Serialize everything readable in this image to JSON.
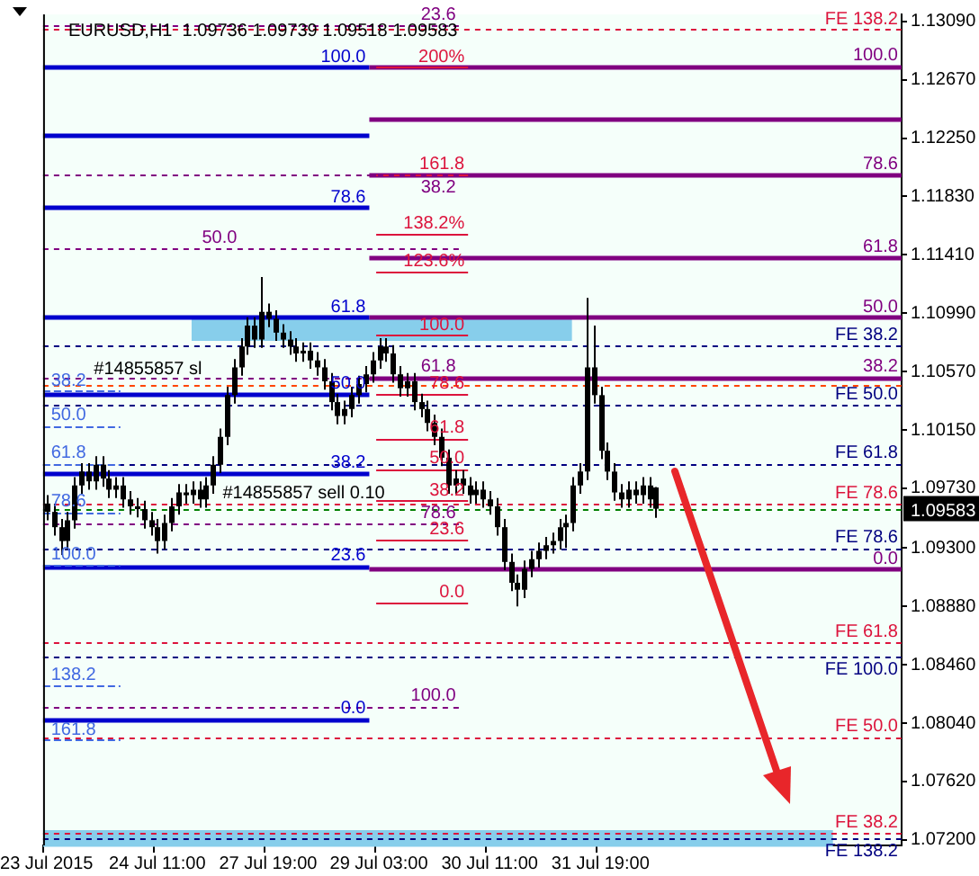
{
  "chart_data": {
    "type": "candlestick",
    "title": "EURUSD,H1  1.09736 1.09739 1.09518 1.09583",
    "color": "#000000",
    "categories": [
      "23 Jul 2015",
      null,
      null,
      null,
      null,
      null,
      null,
      null,
      null,
      null,
      null,
      null,
      null,
      null,
      null,
      null,
      "24 Jul 11:00",
      null,
      null,
      null,
      null,
      null,
      null,
      null,
      null,
      null,
      null,
      null,
      null,
      null,
      null,
      null,
      "27 Jul 19:00",
      null,
      null,
      null,
      null,
      null,
      null,
      null,
      null,
      null,
      null,
      null,
      null,
      null,
      null,
      null,
      "29 Jul 03:00",
      null,
      null,
      null,
      null,
      null,
      null,
      null,
      null,
      null,
      null,
      null,
      null,
      null,
      null,
      null,
      "30 Jul 11:00",
      null,
      null,
      null,
      null,
      null,
      null,
      null,
      null,
      null,
      null,
      null,
      null,
      null,
      null,
      null,
      "31 Jul 19:00",
      null,
      null,
      null,
      null,
      null,
      null,
      null,
      null,
      null,
      null,
      null,
      null,
      null,
      null,
      null,
      null,
      null,
      null,
      null,
      null,
      null,
      null,
      null,
      null,
      null,
      null,
      null,
      null,
      null,
      null,
      null,
      null,
      null,
      null,
      null,
      null,
      null,
      null,
      null,
      null,
      null,
      null,
      null
    ],
    "ohlc": [
      [
        1.0962,
        1.0968,
        1.095,
        1.0956
      ],
      [
        1.0956,
        1.0962,
        1.0939,
        1.0945
      ],
      [
        1.0945,
        1.0951,
        1.0925,
        1.0935
      ],
      [
        1.0935,
        1.0956,
        1.0929,
        1.095
      ],
      [
        1.095,
        1.0981,
        1.0944,
        1.0975
      ],
      [
        1.0975,
        1.0991,
        1.0969,
        1.0985
      ],
      [
        1.0985,
        1.0991,
        1.0972,
        1.0978
      ],
      [
        1.0978,
        1.0996,
        1.0972,
        1.099
      ],
      [
        1.099,
        1.0996,
        1.0974,
        1.098
      ],
      [
        1.098,
        1.0986,
        1.0966,
        1.0972
      ],
      [
        1.0972,
        1.0981,
        1.0966,
        1.0975
      ],
      [
        1.0975,
        1.0981,
        1.0959,
        1.0965
      ],
      [
        1.0965,
        1.0971,
        1.0954,
        1.096
      ],
      [
        1.096,
        1.0966,
        1.0952,
        1.0958
      ],
      [
        1.0958,
        1.0964,
        1.0944,
        1.095
      ],
      [
        1.095,
        1.0956,
        1.0939,
        1.0945
      ],
      [
        1.0945,
        1.0951,
        1.0926,
        1.0935
      ],
      [
        1.0935,
        1.0954,
        1.0929,
        1.0948
      ],
      [
        1.0948,
        1.0966,
        1.0942,
        1.096
      ],
      [
        1.096,
        1.0976,
        1.0954,
        1.097
      ],
      [
        1.097,
        1.0976,
        1.0962,
        1.0968
      ],
      [
        1.0968,
        1.0978,
        1.0962,
        1.0972
      ],
      [
        1.0972,
        1.0978,
        1.0959,
        1.0965
      ],
      [
        1.0965,
        1.0981,
        1.0959,
        1.0975
      ],
      [
        1.0975,
        1.0996,
        1.0969,
        1.099
      ],
      [
        1.099,
        1.1016,
        1.0984,
        1.101
      ],
      [
        1.101,
        1.1046,
        1.1004,
        1.104
      ],
      [
        1.104,
        1.1066,
        1.1034,
        1.106
      ],
      [
        1.106,
        1.1081,
        1.1054,
        1.1075
      ],
      [
        1.1075,
        1.1096,
        1.1069,
        1.109
      ],
      [
        1.109,
        1.1096,
        1.1074,
        1.108
      ],
      [
        1.108,
        1.1125,
        1.1074,
        1.11
      ],
      [
        1.11,
        1.1106,
        1.1089,
        1.1095
      ],
      [
        1.1095,
        1.1101,
        1.1079,
        1.1085
      ],
      [
        1.1085,
        1.1091,
        1.1074,
        1.108
      ],
      [
        1.108,
        1.1086,
        1.1069,
        1.1075
      ],
      [
        1.1075,
        1.1081,
        1.1064,
        1.107
      ],
      [
        1.107,
        1.1078,
        1.1064,
        1.1072
      ],
      [
        1.1072,
        1.1078,
        1.1059,
        1.1065
      ],
      [
        1.1065,
        1.1071,
        1.1054,
        1.106
      ],
      [
        1.106,
        1.1066,
        1.1044,
        1.105
      ],
      [
        1.105,
        1.1056,
        1.1029,
        1.1035
      ],
      [
        1.1035,
        1.1041,
        1.1019,
        1.1025
      ],
      [
        1.1025,
        1.1036,
        1.1019,
        1.103
      ],
      [
        1.103,
        1.1046,
        1.1024,
        1.104
      ],
      [
        1.104,
        1.1054,
        1.1034,
        1.1048
      ],
      [
        1.1048,
        1.1061,
        1.1042,
        1.1055
      ],
      [
        1.1055,
        1.1071,
        1.1049,
        1.1065
      ],
      [
        1.1065,
        1.1081,
        1.1059,
        1.1075
      ],
      [
        1.1075,
        1.1081,
        1.1064,
        1.107
      ],
      [
        1.107,
        1.1076,
        1.1049,
        1.1055
      ],
      [
        1.1055,
        1.1061,
        1.1039,
        1.1045
      ],
      [
        1.1045,
        1.1056,
        1.1039,
        1.105
      ],
      [
        1.105,
        1.1056,
        1.1029,
        1.1035
      ],
      [
        1.1035,
        1.1041,
        1.1024,
        1.103
      ],
      [
        1.103,
        1.1036,
        1.1014,
        1.102
      ],
      [
        1.102,
        1.1026,
        1.1004,
        1.101
      ],
      [
        1.101,
        1.1016,
        1.0989,
        1.0995
      ],
      [
        1.0995,
        1.1001,
        1.0969,
        1.0975
      ],
      [
        1.0975,
        1.0986,
        1.0969,
        1.098
      ],
      [
        1.098,
        1.0986,
        1.0969,
        1.0975
      ],
      [
        1.0975,
        1.0981,
        1.0962,
        1.0968
      ],
      [
        1.0968,
        1.0978,
        1.0962,
        1.0972
      ],
      [
        1.0972,
        1.0978,
        1.0959,
        1.0965
      ],
      [
        1.0965,
        1.0971,
        1.0954,
        1.096
      ],
      [
        1.096,
        1.0966,
        1.0939,
        1.0945
      ],
      [
        1.0945,
        1.0951,
        1.0914,
        1.092
      ],
      [
        1.092,
        1.0926,
        1.0899,
        1.0905
      ],
      [
        1.0905,
        1.0911,
        1.0888,
        1.09
      ],
      [
        1.09,
        1.0921,
        1.0894,
        1.0915
      ],
      [
        1.0915,
        1.0928,
        1.0909,
        1.0922
      ],
      [
        1.0922,
        1.0934,
        1.0916,
        1.0928
      ],
      [
        1.0928,
        1.0938,
        1.0922,
        1.0932
      ],
      [
        1.0932,
        1.0941,
        1.0926,
        1.0935
      ],
      [
        1.0935,
        1.0951,
        1.0929,
        1.0945
      ],
      [
        1.0945,
        1.0954,
        1.093,
        1.0948
      ],
      [
        1.0948,
        1.0981,
        1.0942,
        1.0975
      ],
      [
        1.0975,
        1.0991,
        1.0969,
        1.0985
      ],
      [
        1.0985,
        1.111,
        1.0979,
        1.106
      ],
      [
        1.106,
        1.109,
        1.1034,
        1.104
      ],
      [
        1.104,
        1.1046,
        1.0994,
        1.1
      ],
      [
        1.1,
        1.1006,
        1.0979,
        1.0985
      ],
      [
        1.0985,
        1.0991,
        1.0964,
        1.097
      ],
      [
        1.097,
        1.0976,
        1.0959,
        1.0965
      ],
      [
        1.0965,
        1.0978,
        1.0959,
        1.0972
      ],
      [
        1.0972,
        1.0978,
        1.0962,
        1.0968
      ],
      [
        1.0968,
        1.0981,
        1.0962,
        1.0975
      ],
      [
        1.0975,
        1.0981,
        1.0959,
        1.0965
      ],
      [
        1.09736,
        1.09739,
        1.09518,
        1.09583
      ],
      null,
      null,
      null,
      null,
      null,
      null,
      null,
      null,
      null,
      null,
      null,
      null,
      null,
      null,
      null,
      null,
      null,
      null,
      null,
      null,
      null,
      null,
      null,
      null,
      null,
      null,
      null,
      null,
      null,
      null,
      null,
      null,
      null,
      null,
      null
    ],
    "ylim": [
      1.0716,
      1.1314
    ],
    "yticks": [
      {
        "value": 1.1309,
        "label": "1.13090"
      },
      {
        "value": 1.1267,
        "label": "1.12670"
      },
      {
        "value": 1.1225,
        "label": "1.12250"
      },
      {
        "value": 1.1183,
        "label": "1.11830"
      },
      {
        "value": 1.1141,
        "label": "1.11410"
      },
      {
        "value": 1.1099,
        "label": "1.10990"
      },
      {
        "value": 1.1057,
        "label": "1.10570"
      },
      {
        "value": 1.1015,
        "label": "1.10150"
      },
      {
        "value": 1.0973,
        "label": "1.09730"
      },
      {
        "value": 1.093,
        "label": "1.09300"
      },
      {
        "value": 1.0888,
        "label": "1.08880"
      },
      {
        "value": 1.0846,
        "label": "1.08460"
      },
      {
        "value": 1.0804,
        "label": "1.08040"
      },
      {
        "value": 1.0762,
        "label": "1.07620"
      },
      {
        "value": 1.072,
        "label": "1.07200"
      }
    ],
    "grid": false,
    "legend": false,
    "bands": [
      {
        "axis": "y",
        "from": 1.1079,
        "to": 1.1097,
        "color": "#87ceeb"
      },
      {
        "axis": "y",
        "from": 1.0715,
        "to": 1.0727,
        "color": "#87ceeb"
      }
    ],
    "ref_lines": [
      {
        "axis": "y",
        "value": 1.1276,
        "color": "#0000cd",
        "line_style": "solid"
      },
      {
        "axis": "y",
        "value": 1.1227,
        "color": "#0000cd",
        "line_style": "solid"
      },
      {
        "axis": "y",
        "value": 1.1175,
        "color": "#0000cd",
        "line_style": "solid"
      },
      {
        "axis": "y",
        "value": 1.1096,
        "color": "#0000cd",
        "line_style": "solid"
      },
      {
        "axis": "y",
        "value": 1.1041,
        "color": "#0000cd",
        "line_style": "solid"
      },
      {
        "axis": "y",
        "value": 1.0984,
        "color": "#0000cd",
        "line_style": "solid"
      },
      {
        "axis": "y",
        "value": 1.0917,
        "color": "#0000cd",
        "line_style": "solid"
      },
      {
        "axis": "y",
        "value": 1.0807,
        "color": "#0000cd",
        "line_style": "solid"
      },
      {
        "axis": "y",
        "value": 1.1277,
        "color": "#800080",
        "line_style": "solid"
      },
      {
        "axis": "y",
        "value": 1.1239,
        "color": "#800080",
        "line_style": "solid"
      },
      {
        "axis": "y",
        "value": 1.1199,
        "color": "#800080",
        "line_style": "solid"
      },
      {
        "axis": "y",
        "value": 1.1139,
        "color": "#800080",
        "line_style": "solid"
      },
      {
        "axis": "y",
        "value": 1.1096,
        "color": "#800080",
        "line_style": "solid"
      },
      {
        "axis": "y",
        "value": 1.1053,
        "color": "#800080",
        "line_style": "solid"
      },
      {
        "axis": "y",
        "value": 1.0915,
        "color": "#800080",
        "line_style": "solid"
      },
      {
        "axis": "y",
        "value": 1.1276,
        "color": "#dc143c",
        "line_style": "solid"
      },
      {
        "axis": "y",
        "value": 1.1199,
        "color": "#dc143c",
        "line_style": "solid"
      },
      {
        "axis": "y",
        "value": 1.1156,
        "color": "#dc143c",
        "line_style": "solid"
      },
      {
        "axis": "y",
        "value": 1.1129,
        "color": "#dc143c",
        "line_style": "solid"
      },
      {
        "axis": "y",
        "value": 1.1083,
        "color": "#dc143c",
        "line_style": "solid"
      },
      {
        "axis": "y",
        "value": 1.1041,
        "color": "#dc143c",
        "line_style": "solid"
      },
      {
        "axis": "y",
        "value": 1.1009,
        "color": "#dc143c",
        "line_style": "solid"
      },
      {
        "axis": "y",
        "value": 1.0987,
        "color": "#dc143c",
        "line_style": "solid"
      },
      {
        "axis": "y",
        "value": 1.0964,
        "color": "#dc143c",
        "line_style": "solid"
      },
      {
        "axis": "y",
        "value": 1.0936,
        "color": "#dc143c",
        "line_style": "solid"
      },
      {
        "axis": "y",
        "value": 1.0891,
        "color": "#dc143c",
        "line_style": "solid"
      },
      {
        "axis": "y",
        "value": 1.1306,
        "color": "#800080",
        "line_style": "dashed"
      },
      {
        "axis": "y",
        "value": 1.1199,
        "color": "#800080",
        "line_style": "dashed"
      },
      {
        "axis": "y",
        "value": 1.1146,
        "color": "#800080",
        "line_style": "dashed"
      },
      {
        "axis": "y",
        "value": 1.1053,
        "color": "#800080",
        "line_style": "dashed"
      },
      {
        "axis": "y",
        "value": 1.0948,
        "color": "#800080",
        "line_style": "dashed"
      },
      {
        "axis": "y",
        "value": 1.0816,
        "color": "#800080",
        "line_style": "dashed"
      },
      {
        "axis": "y",
        "value": 1.1303,
        "color": "#dc143c",
        "line_style": "dashed"
      },
      {
        "axis": "y",
        "value": 1.0962,
        "color": "#dc143c",
        "line_style": "dashed"
      },
      {
        "axis": "y",
        "value": 1.0862,
        "color": "#dc143c",
        "line_style": "dashed"
      },
      {
        "axis": "y",
        "value": 1.0794,
        "color": "#dc143c",
        "line_style": "dashed"
      },
      {
        "axis": "y",
        "value": 1.0725,
        "color": "#dc143c",
        "line_style": "dashed"
      },
      {
        "axis": "y",
        "value": 1.1076,
        "color": "#000080",
        "line_style": "dashed"
      },
      {
        "axis": "y",
        "value": 1.1033,
        "color": "#000080",
        "line_style": "dashed"
      },
      {
        "axis": "y",
        "value": 1.0991,
        "color": "#000080",
        "line_style": "dashed"
      },
      {
        "axis": "y",
        "value": 1.093,
        "color": "#000080",
        "line_style": "dashed"
      },
      {
        "axis": "y",
        "value": 1.0852,
        "color": "#000080",
        "line_style": "dashed"
      },
      {
        "axis": "y",
        "value": 1.0721,
        "color": "#000080",
        "line_style": "dashed"
      },
      {
        "axis": "y",
        "value": 1.1043,
        "color": "#4169e1",
        "line_style": "dashed"
      },
      {
        "axis": "y",
        "value": 1.1018,
        "color": "#4169e1",
        "line_style": "dashed"
      },
      {
        "axis": "y",
        "value": 1.0991,
        "color": "#4169e1",
        "line_style": "dashed"
      },
      {
        "axis": "y",
        "value": 1.0956,
        "color": "#4169e1",
        "line_style": "dashed"
      },
      {
        "axis": "y",
        "value": 1.0918,
        "color": "#4169e1",
        "line_style": "dashed"
      },
      {
        "axis": "y",
        "value": 1.0831,
        "color": "#4169e1",
        "line_style": "dashed"
      },
      {
        "axis": "y",
        "value": 1.0792,
        "color": "#4169e1",
        "line_style": "dashed"
      },
      {
        "axis": "y",
        "value": 1.1048,
        "color": "#ff4500",
        "line_style": "dashed"
      },
      {
        "axis": "y",
        "value": 1.09583,
        "label": "1.09583",
        "color": "#008000",
        "line_style": "dashed"
      }
    ],
    "annotations": [
      {
        "text": "#14855857 sl",
        "y": 1.1055
      },
      {
        "text": "#14855857 sell 0.10",
        "y": 1.0966
      },
      {
        "text": "100.0",
        "y": 1.1276
      },
      {
        "text": "78.6",
        "y": 1.1175
      },
      {
        "text": "61.8",
        "y": 1.1096
      },
      {
        "text": "50.0",
        "y": 1.1041
      },
      {
        "text": "38.2",
        "y": 1.0984
      },
      {
        "text": "23.6",
        "y": 1.0917
      },
      {
        "text": "0.0",
        "y": 1.0807
      },
      {
        "text": "100.0",
        "y": 1.1277
      },
      {
        "text": "78.6",
        "y": 1.1199
      },
      {
        "text": "61.8",
        "y": 1.1139
      },
      {
        "text": "50.0",
        "y": 1.1096
      },
      {
        "text": "38.2",
        "y": 1.1053
      },
      {
        "text": "0.0",
        "y": 1.0915
      },
      {
        "text": "200%",
        "y": 1.1276
      },
      {
        "text": "161.8",
        "y": 1.1199
      },
      {
        "text": "138.2%",
        "y": 1.1156
      },
      {
        "text": "123.6%",
        "y": 1.1129
      },
      {
        "text": "100.0",
        "y": 1.1083
      },
      {
        "text": "78.6",
        "y": 1.1041
      },
      {
        "text": "61.8",
        "y": 1.1009
      },
      {
        "text": "50.0",
        "y": 1.0987
      },
      {
        "text": "38.2",
        "y": 1.0964
      },
      {
        "text": "23.6",
        "y": 1.0936
      },
      {
        "text": "0.0",
        "y": 1.0891
      },
      {
        "text": "23.6",
        "y": 1.1306
      },
      {
        "text": "38.2",
        "y": 1.1199
      },
      {
        "text": "50.0",
        "y": 1.1146
      },
      {
        "text": "61.8",
        "y": 1.1053
      },
      {
        "text": "78.6",
        "y": 1.0948
      },
      {
        "text": "100.0",
        "y": 1.0816
      },
      {
        "text": "FE 138.2",
        "y": 1.1303
      },
      {
        "text": "FE 78.6",
        "y": 1.0962
      },
      {
        "text": "FE 61.8",
        "y": 1.0862
      },
      {
        "text": "FE 50.0",
        "y": 1.0794
      },
      {
        "text": "FE 38.2",
        "y": 1.0725
      },
      {
        "text": "FE 38.2",
        "y": 1.1076
      },
      {
        "text": "FE 50.0",
        "y": 1.1033
      },
      {
        "text": "FE 61.8",
        "y": 1.0991
      },
      {
        "text": "FE 78.6",
        "y": 1.093
      },
      {
        "text": "FE 100.0",
        "y": 1.0852
      },
      {
        "text": "FE 138.2",
        "y": 1.0721
      },
      {
        "text": "38.2",
        "y": 1.1043
      },
      {
        "text": "50.0",
        "y": 1.1018
      },
      {
        "text": "61.8",
        "y": 1.0991
      },
      {
        "text": "78.6",
        "y": 1.0956
      },
      {
        "text": "100.0",
        "y": 1.0918
      },
      {
        "text": "138.2",
        "y": 1.0831
      },
      {
        "text": "161.8",
        "y": 1.0792
      }
    ]
  }
}
